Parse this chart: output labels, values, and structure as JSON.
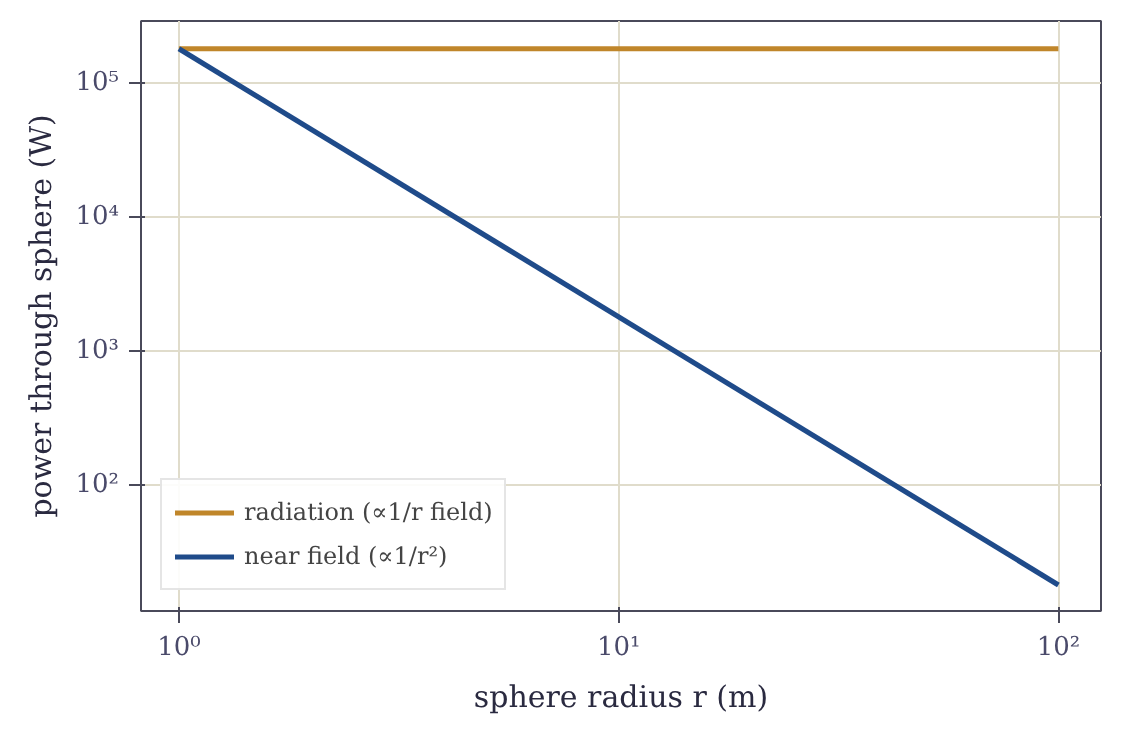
{
  "chart_data": {
    "type": "line",
    "xlabel": "sphere radius r (m)",
    "ylabel": "power through sphere (W)",
    "x": [
      1,
      100
    ],
    "series": [
      {
        "name": "radiation (∝1/r field)",
        "color": "#c0862a",
        "values": [
          180000,
          180000
        ]
      },
      {
        "name": "near field (∝1/r²)",
        "color": "#1f4b8a",
        "values": [
          180000,
          18
        ]
      }
    ],
    "log": "xy",
    "xlim": [
      0.82,
      125
    ],
    "ylim": [
      11.5,
      290000
    ],
    "xticks": [
      {
        "value": 1,
        "label": "10⁰"
      },
      {
        "value": 10,
        "label": "10¹"
      },
      {
        "value": 100,
        "label": "10²"
      }
    ],
    "yticks": [
      {
        "value": 100,
        "label": "10²"
      },
      {
        "value": 1000,
        "label": "10³"
      },
      {
        "value": 10000,
        "label": "10⁴"
      },
      {
        "value": 100000,
        "label": "10⁵"
      }
    ],
    "grid": true,
    "legend": "bottom left",
    "marker": "none",
    "line_style": "solid"
  }
}
